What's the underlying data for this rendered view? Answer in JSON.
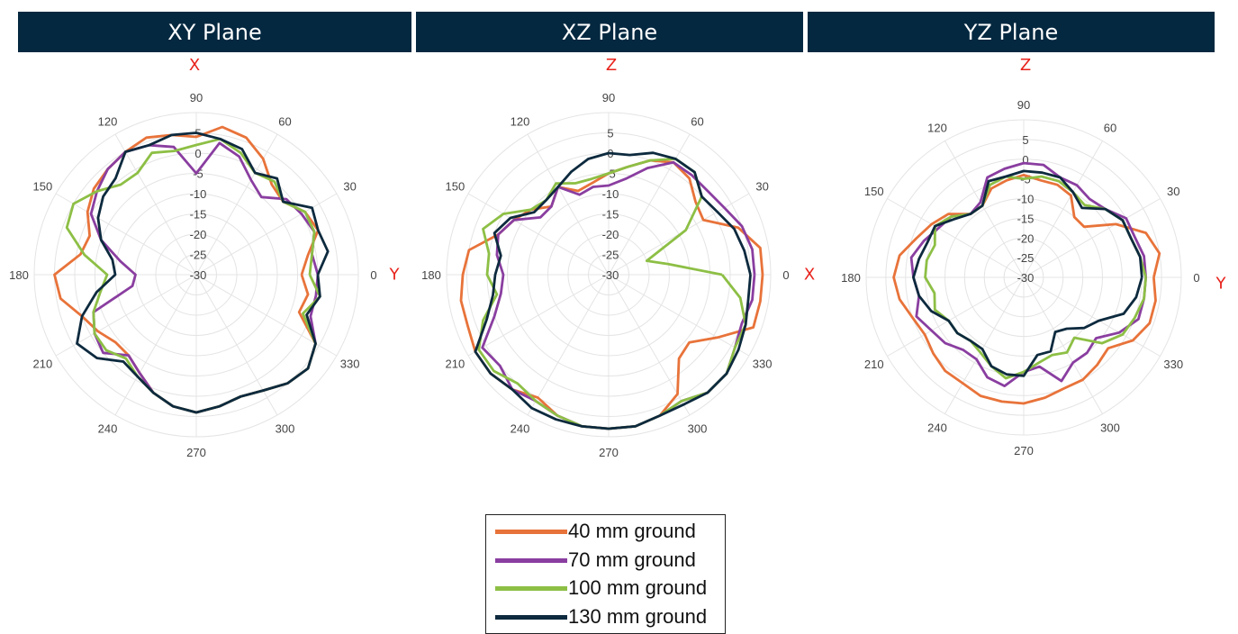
{
  "panels": [
    {
      "title": "XY Plane",
      "top_axis": "X",
      "right_axis": "Y"
    },
    {
      "title": "XZ Plane",
      "top_axis": "Z",
      "right_axis": "X"
    },
    {
      "title": "YZ Plane",
      "top_axis": "Z",
      "right_axis": "Y"
    }
  ],
  "legend": {
    "items": [
      {
        "label": "40 mm ground",
        "color": "#e8733a"
      },
      {
        "label": "70 mm ground",
        "color": "#8a3ea0"
      },
      {
        "label": "100 mm ground",
        "color": "#8dbf45"
      },
      {
        "label": "130 mm ground",
        "color": "#0d2a3e"
      }
    ]
  },
  "chart_data": [
    {
      "type": "polar-line",
      "title": "XY Plane",
      "theta_unit": "degrees",
      "theta_ticks": [
        "0",
        "30",
        "60",
        "90",
        "120",
        "150",
        "180",
        "210",
        "240",
        "270",
        "300",
        "330"
      ],
      "r_ticks": [
        "5",
        "0",
        "-5",
        "-10",
        "-15",
        "-20",
        "-25",
        "-30"
      ],
      "r_range": [
        -30,
        10
      ],
      "grid": true,
      "theta": [
        0,
        10,
        20,
        30,
        40,
        50,
        60,
        70,
        80,
        90,
        100,
        110,
        120,
        130,
        140,
        150,
        160,
        170,
        180,
        190,
        200,
        210,
        220,
        230,
        240,
        250,
        260,
        270,
        280,
        290,
        300,
        310,
        320,
        330,
        340,
        350
      ],
      "series": [
        {
          "name": "40 mm ground",
          "color": "#e8733a",
          "r": [
            -4,
            -2,
            2,
            1,
            -2,
            -1,
            3,
            6,
            7,
            4,
            5,
            6,
            5,
            4,
            3,
            1,
            -2,
            -1,
            5,
            4,
            0,
            -2,
            -4,
            -4,
            -2,
            1,
            3,
            4,
            3,
            2,
            3,
            5,
            6,
            4,
            -3,
            -2
          ]
        },
        {
          "name": "70 mm ground",
          "color": "#8a3ea0",
          "r": [
            0,
            -1,
            1,
            0,
            -1,
            -5,
            -3,
            1,
            3,
            -5,
            2,
            4,
            5,
            4,
            2,
            0,
            -5,
            -11,
            -15,
            -14,
            -3,
            -1,
            0,
            -4,
            -2,
            1,
            3,
            4,
            3,
            2,
            3,
            5,
            6,
            4,
            0,
            0
          ]
        },
        {
          "name": "100 mm ground",
          "color": "#8dbf45",
          "r": [
            -2,
            -1,
            1,
            1,
            -2,
            0,
            -1,
            2,
            4,
            2,
            1,
            2,
            -1,
            -1,
            2,
            5,
            4,
            -2,
            -8,
            -6,
            -3,
            -1,
            -1,
            -3,
            -1,
            1,
            3,
            4,
            3,
            2,
            3,
            5,
            6,
            4,
            -2,
            1
          ]
        },
        {
          "name": "130 mm ground",
          "color": "#0d2a3e",
          "r": [
            0,
            3,
            2,
            3,
            -2,
            1,
            -1,
            3,
            4,
            5,
            5,
            4,
            5,
            1,
            0,
            -2,
            -5,
            -9,
            -10,
            -5,
            0,
            4,
            2,
            -2,
            -1,
            1,
            3,
            4,
            3,
            2,
            3,
            5,
            6,
            4,
            -1,
            1
          ]
        }
      ]
    },
    {
      "type": "polar-line",
      "title": "XZ Plane",
      "theta_unit": "degrees",
      "theta_ticks": [
        "0",
        "30",
        "60",
        "90",
        "120",
        "150",
        "180",
        "210",
        "240",
        "270",
        "300",
        "330"
      ],
      "r_ticks": [
        "5",
        "0",
        "-5",
        "-10",
        "-15",
        "-20",
        "-25",
        "-30"
      ],
      "r_range": [
        -30,
        10
      ],
      "grid": true,
      "theta": [
        0,
        10,
        20,
        30,
        40,
        50,
        60,
        70,
        80,
        90,
        100,
        110,
        120,
        130,
        140,
        150,
        160,
        170,
        180,
        190,
        200,
        210,
        220,
        230,
        240,
        250,
        260,
        270,
        280,
        290,
        300,
        310,
        320,
        330,
        340,
        350
      ],
      "series": [
        {
          "name": "40 mm ground",
          "color": "#e8733a",
          "r": [
            8,
            8,
            4,
            -3,
            -2,
            1,
            2,
            0,
            -3,
            -5,
            -7,
            -8,
            -5,
            -8,
            -5,
            -3,
            -1,
            5,
            6,
            7,
            7,
            8,
            8,
            7,
            5,
            7,
            8,
            8,
            8,
            7,
            4,
            -3,
            -4,
            1,
            8,
            8
          ]
        },
        {
          "name": "70 mm ground",
          "color": "#8a3ea0",
          "r": [
            6,
            6,
            5,
            3,
            2,
            2,
            2,
            -2,
            -6,
            -8,
            -8,
            -9,
            -5,
            -8,
            -8,
            -3,
            -1,
            -2,
            -4,
            -3,
            0,
            6,
            5,
            7,
            6,
            7,
            8,
            8,
            8,
            7,
            6,
            8,
            8,
            6,
            5,
            6
          ]
        },
        {
          "name": "100 mm ground",
          "color": "#8dbf45",
          "r": [
            -2,
            -15,
            -20,
            -8,
            0,
            3,
            3,
            0,
            -3,
            -5,
            -6,
            -6,
            -4,
            -6,
            -5,
            0,
            3,
            0,
            0,
            -2,
            3,
            7,
            7,
            5,
            6,
            7,
            8,
            8,
            8,
            7,
            6,
            8,
            8,
            6,
            6,
            3
          ]
        },
        {
          "name": "130 mm ground",
          "color": "#0d2a3e",
          "r": [
            5,
            4,
            3,
            1,
            0,
            3,
            3,
            2,
            0,
            0,
            -1,
            -3,
            -5,
            -6,
            -6,
            -2,
            0,
            -3,
            -2,
            -1,
            2,
            8,
            8,
            7,
            8,
            8,
            8,
            8,
            8,
            7,
            7,
            8,
            8,
            7,
            6,
            5
          ]
        }
      ]
    },
    {
      "type": "polar-line",
      "title": "YZ Plane",
      "theta_unit": "degrees",
      "theta_ticks": [
        "0",
        "30",
        "60",
        "90",
        "120",
        "150",
        "180",
        "210",
        "240",
        "270",
        "300",
        "330"
      ],
      "r_ticks": [
        "5",
        "0",
        "-5",
        "-10",
        "-15",
        "-20",
        "-25",
        "-30"
      ],
      "r_range": [
        -30,
        10
      ],
      "grid": true,
      "theta": [
        0,
        10,
        20,
        30,
        40,
        50,
        60,
        70,
        80,
        90,
        100,
        110,
        120,
        130,
        140,
        150,
        160,
        170,
        180,
        190,
        200,
        210,
        220,
        230,
        240,
        250,
        260,
        270,
        280,
        290,
        300,
        310,
        320,
        330,
        340,
        350
      ],
      "series": [
        {
          "name": "40 mm ground",
          "color": "#e8733a",
          "r": [
            3,
            5,
            3,
            -3,
            -10,
            -10,
            -6,
            -5,
            -5,
            -4,
            -5,
            -6,
            -9,
            -9,
            -5,
            -3,
            -1,
            2,
            3,
            2,
            0,
            -1,
            0,
            1,
            1,
            2,
            2,
            2,
            1,
            0,
            0,
            -1,
            -2,
            2,
            4,
            4
          ]
        },
        {
          "name": "70 mm ground",
          "color": "#8a3ea0",
          "r": [
            1,
            1,
            0,
            0,
            -3,
            -4,
            -3,
            -3,
            -1,
            -1,
            -2,
            -3,
            -8,
            -9,
            -6,
            -5,
            -3,
            -1,
            -2,
            -3,
            -1,
            -3,
            -4,
            -6,
            -6,
            -3,
            -2,
            -6,
            -7,
            -2,
            -5,
            -5,
            -6,
            -2,
            1,
            1
          ]
        },
        {
          "name": "100 mm ground",
          "color": "#8dbf45",
          "r": [
            1,
            0,
            -1,
            -1,
            -3,
            -6,
            -5,
            -4,
            -4,
            -5,
            -4,
            -5,
            -9,
            -9,
            -6,
            -4,
            -6,
            -5,
            -5,
            -7,
            -6,
            -8,
            -8,
            -9,
            -8,
            -6,
            -4,
            -6,
            -8,
            -9,
            -8,
            -10,
            -4,
            -1,
            0,
            1
          ]
        },
        {
          "name": "130 mm ground",
          "color": "#0d2a3e",
          "r": [
            0,
            0,
            -1,
            -1,
            -3,
            -7,
            -5,
            -3,
            -3,
            -3,
            -4,
            -4,
            -9,
            -9,
            -7,
            -4,
            -4,
            -3,
            -2,
            -3,
            -5,
            -8,
            -8,
            -9,
            -9,
            -6,
            -5,
            -5,
            -10,
            -10,
            -14,
            -13,
            -10,
            -8,
            -3,
            -1
          ]
        }
      ]
    }
  ]
}
